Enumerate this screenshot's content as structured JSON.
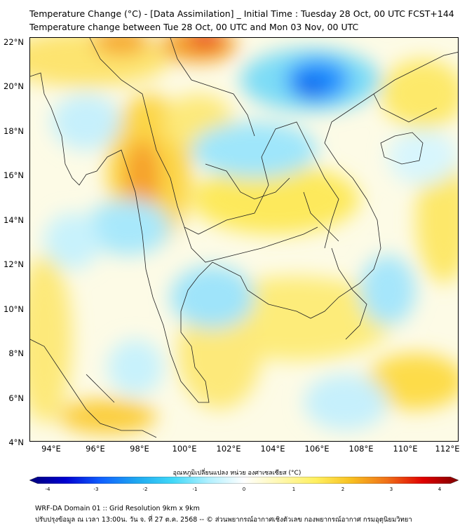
{
  "title_line1": "Temperature Change (°C) - [Data Assimilation] _ Initial Time : Tuesday 28 Oct, 00 UTC FCST+144",
  "title_line2": "Temperature change between Tue 28 Oct, 00 UTC and Mon 03 Nov, 00 UTC",
  "lat_labels": [
    "22°N",
    "20°N",
    "18°N",
    "16°N",
    "14°N",
    "12°N",
    "10°N",
    "8°N",
    "6°N",
    "4°N"
  ],
  "lon_labels": [
    "94°E",
    "96°E",
    "98°E",
    "100°E",
    "102°E",
    "104°E",
    "106°E",
    "108°E",
    "110°E",
    "112°E"
  ],
  "colorbar": {
    "label": "อุณหภูมิเปลี่ยนแปลง หน่วย องศาเซลเซียส (°C)",
    "ticks": [
      "-4",
      "-3",
      "-2",
      "-1",
      "0",
      "1",
      "2",
      "3",
      "4"
    ],
    "range": [
      -4,
      4
    ],
    "colors": [
      "#00007a",
      "#0000d0",
      "#1060ff",
      "#1ea8f0",
      "#40d8f8",
      "#b0f0ff",
      "#ffffff",
      "#fff8b0",
      "#fff060",
      "#f8c020",
      "#f07018",
      "#e00000",
      "#800000"
    ]
  },
  "footer_line1": "WRF-DA Domain 01 :: Grid Resolution 9km x 9km",
  "footer_line2": "ปรับปรุงข้อมูล ณ เวลา 13:00น. วัน จ. ที่ 27 ต.ค. 2568 -- © ส่วนพยากรณ์อากาศเชิงตัวเลข กองพยากรณ์อากาศ กรมอุตุนิยมวิทยา",
  "colors": {
    "cold": "#1e90ff",
    "warm": "#f5a623",
    "hot": "#e8341c",
    "neutral": "#ffffff"
  }
}
